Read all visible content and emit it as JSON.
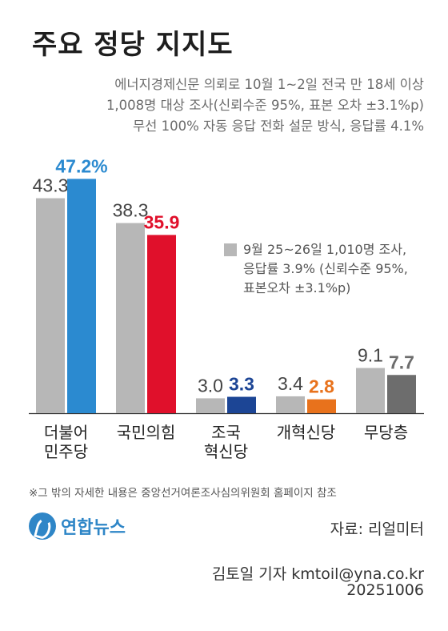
{
  "title": "주요 정당 지지도",
  "survey_info": [
    "에너지경제신문 의뢰로 10월 1~2일 전국 만 18세 이상",
    "1,008명 대상 조사(신뢰수준 95%, 표본 오차 ±3.1%p)",
    "무선 100% 자동 응답 전화 설문 방식, 응답률 4.1%"
  ],
  "legend": {
    "lines": [
      "9월 25~26일 1,010명 조사,",
      "응답률 3.9% (신뢰수준 95%,",
      "표본오차 ±3.1%p)"
    ]
  },
  "chart_data": {
    "type": "bar",
    "categories": [
      [
        "더불어",
        "민주당"
      ],
      [
        "국민의힘"
      ],
      [
        "조국",
        "혁신당"
      ],
      [
        "개혁신당"
      ],
      [
        "무당층"
      ]
    ],
    "series": [
      {
        "values": [
          43.3,
          38.3,
          3.0,
          3.4,
          9.1
        ],
        "colors": [
          "#b7b7b7",
          "#b7b7b7",
          "#b7b7b7",
          "#b7b7b7",
          "#b7b7b7"
        ]
      },
      {
        "values": [
          47.2,
          35.9,
          3.3,
          2.8,
          7.7
        ],
        "colors": [
          "#2b8ad0",
          "#e0102b",
          "#1c4595",
          "#e8721c",
          "#6d6d6d"
        ]
      }
    ],
    "value_labels": [
      [
        "43.3",
        "38.3",
        "3.0",
        "3.4",
        "9.1"
      ],
      [
        "47.2%",
        "35.9",
        "3.3",
        "2.8",
        "7.7"
      ]
    ],
    "ylim": [
      0,
      50
    ],
    "grid": false
  },
  "footnote": "※그 밖의 자세한 내용은 중앙선거여론조사심의위원회 홈페이지 참조",
  "logo_text": "연합뉴스",
  "source": "자료: 리얼미터",
  "reporter": "김토일 기자 kmtoil@yna.co.kr",
  "date": "20251006"
}
